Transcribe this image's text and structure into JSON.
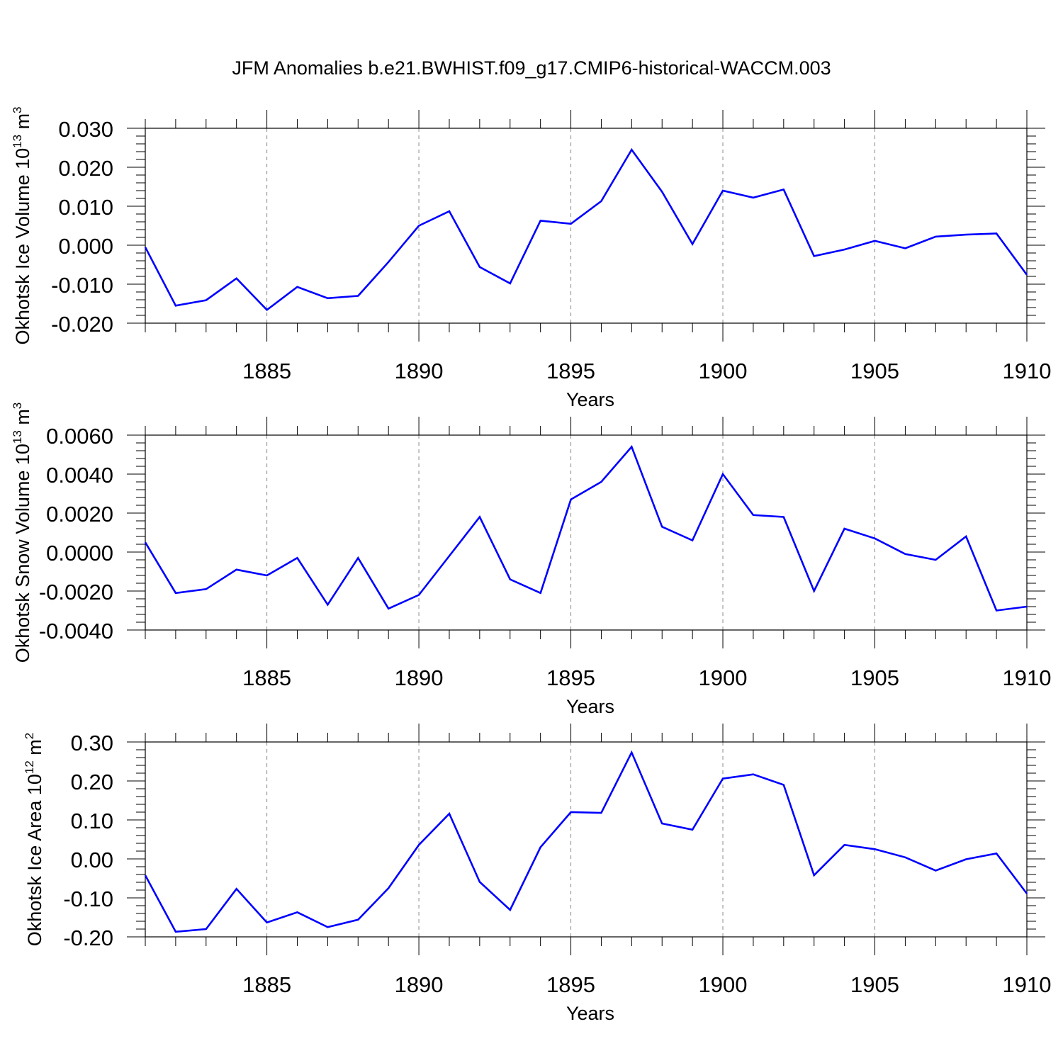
{
  "title": "JFM Anomalies b.e21.BWHIST.f09_g17.CMIP6-historical-WACCM.003",
  "series_color": "#0000ff",
  "chart_data": [
    {
      "type": "line",
      "xlabel": "Years",
      "ylabel_text": "Okhotsk Ice Volume 10",
      "ylabel_exp": "13",
      "ylabel_unit": "m",
      "ylabel_unit_exp": "3",
      "xlim": [
        1881,
        1910
      ],
      "ylim": [
        -0.02,
        0.03
      ],
      "xticks": [
        1885,
        1890,
        1895,
        1900,
        1905,
        1910
      ],
      "yticks": [
        -0.02,
        -0.01,
        0.0,
        0.01,
        0.02,
        0.03
      ],
      "ytick_labels": [
        "-0.020",
        "-0.010",
        "0.000",
        "0.010",
        "0.020",
        "0.030"
      ],
      "x": [
        1881,
        1882,
        1883,
        1884,
        1885,
        1886,
        1887,
        1888,
        1889,
        1890,
        1891,
        1892,
        1893,
        1894,
        1895,
        1896,
        1897,
        1898,
        1899,
        1900,
        1901,
        1902,
        1903,
        1904,
        1905,
        1906,
        1907,
        1908,
        1909,
        1910
      ],
      "values": [
        -0.0005,
        -0.0155,
        -0.0141,
        -0.0085,
        -0.0166,
        -0.0107,
        -0.0136,
        -0.013,
        -0.0043,
        0.005,
        0.0087,
        -0.0056,
        -0.0098,
        0.0063,
        0.0055,
        0.0113,
        0.0245,
        0.0137,
        0.0003,
        0.014,
        0.0122,
        0.0143,
        -0.0028,
        -0.0011,
        0.0011,
        -0.0008,
        0.0022,
        0.0027,
        0.003,
        -0.0076
      ]
    },
    {
      "type": "line",
      "xlabel": "Years",
      "ylabel_text": "Okhotsk Snow Volume 10",
      "ylabel_exp": "13",
      "ylabel_unit": "m",
      "ylabel_unit_exp": "3",
      "xlim": [
        1881,
        1910
      ],
      "ylim": [
        -0.004,
        0.006
      ],
      "xticks": [
        1885,
        1890,
        1895,
        1900,
        1905,
        1910
      ],
      "yticks": [
        -0.004,
        -0.002,
        0.0,
        0.002,
        0.004,
        0.006
      ],
      "ytick_labels": [
        "-0.0040",
        "-0.0020",
        "0.0000",
        "0.0020",
        "0.0040",
        "0.0060"
      ],
      "x": [
        1881,
        1882,
        1883,
        1884,
        1885,
        1886,
        1887,
        1888,
        1889,
        1890,
        1891,
        1892,
        1893,
        1894,
        1895,
        1896,
        1897,
        1898,
        1899,
        1900,
        1901,
        1902,
        1903,
        1904,
        1905,
        1906,
        1907,
        1908,
        1909,
        1910
      ],
      "values": [
        0.0005,
        -0.0021,
        -0.0019,
        -0.0009,
        -0.0012,
        -0.0003,
        -0.0027,
        -0.0003,
        -0.0029,
        -0.0022,
        -0.0002,
        0.0018,
        -0.0014,
        -0.0021,
        0.0027,
        0.0036,
        0.0054,
        0.0013,
        0.0006,
        0.004,
        0.0019,
        0.0018,
        -0.002,
        0.0012,
        0.0007,
        -0.0001,
        -0.0004,
        0.0008,
        -0.003,
        -0.0028
      ]
    },
    {
      "type": "line",
      "xlabel": "Years",
      "ylabel_text": "Okhotsk Ice Area 10",
      "ylabel_exp": "12",
      "ylabel_unit": "m",
      "ylabel_unit_exp": "2",
      "xlim": [
        1881,
        1910
      ],
      "ylim": [
        -0.2,
        0.3
      ],
      "xticks": [
        1885,
        1890,
        1895,
        1900,
        1905,
        1910
      ],
      "yticks": [
        -0.2,
        -0.1,
        0.0,
        0.1,
        0.2,
        0.3
      ],
      "ytick_labels": [
        "-0.20",
        "-0.10",
        "0.00",
        "0.10",
        "0.20",
        "0.30"
      ],
      "x": [
        1881,
        1882,
        1883,
        1884,
        1885,
        1886,
        1887,
        1888,
        1889,
        1890,
        1891,
        1892,
        1893,
        1894,
        1895,
        1896,
        1897,
        1898,
        1899,
        1900,
        1901,
        1902,
        1903,
        1904,
        1905,
        1906,
        1907,
        1908,
        1909,
        1910
      ],
      "values": [
        -0.042,
        -0.187,
        -0.18,
        -0.077,
        -0.163,
        -0.137,
        -0.175,
        -0.156,
        -0.075,
        0.036,
        0.116,
        -0.059,
        -0.131,
        0.03,
        0.12,
        0.118,
        0.273,
        0.091,
        0.075,
        0.206,
        0.217,
        0.19,
        -0.042,
        0.036,
        0.025,
        0.004,
        -0.03,
        -0.001,
        0.014,
        -0.089
      ]
    }
  ]
}
